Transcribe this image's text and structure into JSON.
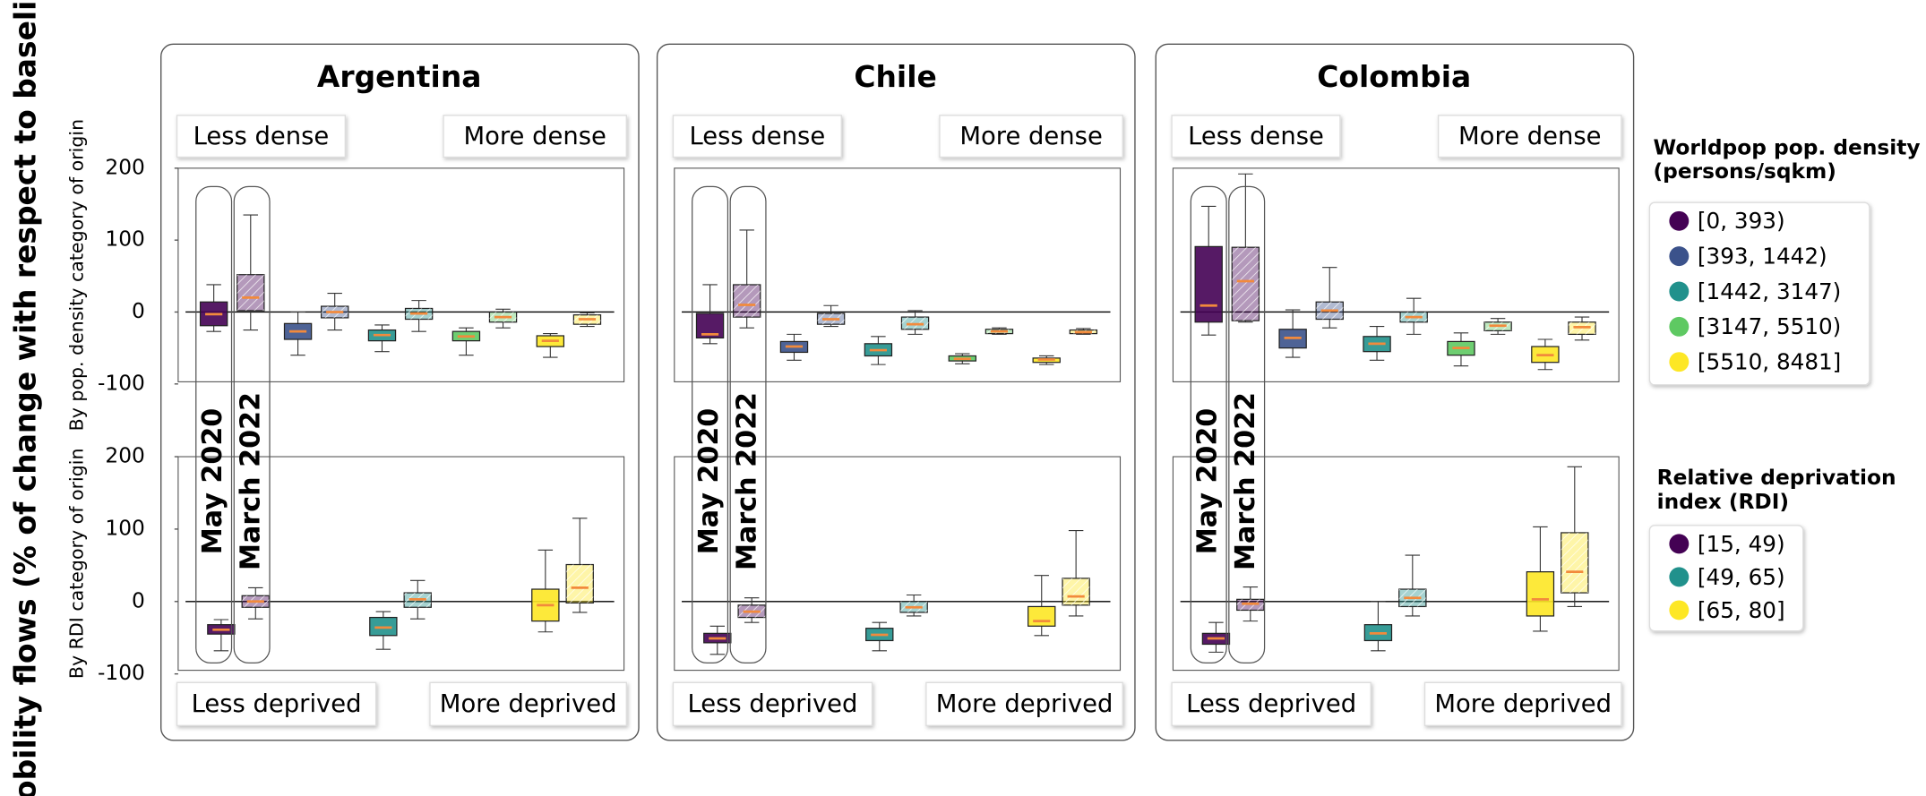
{
  "ylabel": "Mobility flows (% of change with respect to baseline)",
  "legends": [
    {
      "title": [
        "Worldpop pop. density",
        "(persons/sqkm)"
      ],
      "entries": [
        "[0, 393)",
        "[393, 1442)",
        "[1442, 3147)",
        "[3147, 5510)",
        "[5510, 8481]"
      ],
      "colors": [
        "#440154",
        "#3b528b",
        "#21918c",
        "#5ec962",
        "#fde725"
      ]
    },
    {
      "title": [
        "Relative deprivation",
        "index (RDI)"
      ],
      "entries": [
        "[15, 49)",
        "[49, 65)",
        "[65, 80]"
      ],
      "colors": [
        "#440154",
        "#21918c",
        "#fde725"
      ]
    }
  ],
  "chart_data": [
    {
      "type": "box",
      "title": "Argentina",
      "periods": [
        "May 2020",
        "March 2022"
      ],
      "panels": [
        {
          "ylabel": "By pop. density category of origin",
          "left_label": "Less dense",
          "right_label": "More dense",
          "ylim": [
            -97,
            200
          ],
          "yticks": [
            -100,
            0,
            100,
            200
          ],
          "boxes": [
            [
              [
                -27,
                -19,
                -3,
                14,
                38
              ],
              [
                -25,
                2,
                20,
                52,
                135
              ]
            ],
            [
              [
                -60,
                -38,
                -27,
                -16,
                0
              ],
              [
                -25,
                -8,
                0,
                8,
                26
              ]
            ],
            [
              [
                -55,
                -40,
                -32,
                -25,
                -18
              ],
              [
                -27,
                -10,
                -2,
                5,
                16
              ]
            ],
            [
              [
                -60,
                -40,
                -34,
                -27,
                -22
              ],
              [
                -22,
                -14,
                -7,
                0,
                4
              ]
            ],
            [
              [
                -63,
                -48,
                -40,
                -33,
                -30
              ],
              [
                -20,
                -17,
                -10,
                -4,
                -1
              ]
            ]
          ]
        },
        {
          "ylabel": "By RDI category of origin",
          "left_label": "Less deprived",
          "right_label": "More deprived",
          "ylim": [
            -95,
            200
          ],
          "yticks": [
            -100,
            0,
            100,
            200
          ],
          "boxes": [
            [
              [
                -68,
                -45,
                -39,
                -32,
                -25
              ],
              [
                -24,
                -8,
                0,
                8,
                19
              ]
            ],
            [
              [
                -66,
                -47,
                -36,
                -22,
                -14
              ],
              [
                -24,
                -8,
                3,
                12,
                29
              ]
            ],
            [
              [
                -42,
                -27,
                -5,
                17,
                71
              ],
              [
                -15,
                -2,
                19,
                51,
                115
              ]
            ]
          ]
        }
      ]
    },
    {
      "type": "box",
      "title": "Chile",
      "periods": [
        "May 2020",
        "March 2022"
      ],
      "panels": [
        {
          "left_label": "Less dense",
          "right_label": "More dense",
          "ylim": [
            -97,
            200
          ],
          "boxes": [
            [
              [
                -44,
                -36,
                -31,
                -2,
                38
              ],
              [
                -22,
                -7,
                10,
                38,
                114
              ]
            ],
            [
              [
                -67,
                -56,
                -48,
                -41,
                -31
              ],
              [
                -20,
                -17,
                -10,
                -2,
                9
              ]
            ],
            [
              [
                -73,
                -61,
                -53,
                -44,
                -34
              ],
              [
                -31,
                -24,
                -17,
                -7,
                2
              ]
            ],
            [
              [
                -72,
                -68,
                -65,
                -61,
                -58
              ],
              [
                -31,
                -30,
                -27,
                -24,
                -22
              ]
            ],
            [
              [
                -73,
                -70,
                -66,
                -64,
                -61
              ],
              [
                -31,
                -30,
                -28,
                -25,
                -23
              ]
            ]
          ]
        },
        {
          "left_label": "Less deprived",
          "right_label": "More deprived",
          "ylim": [
            -95,
            200
          ],
          "boxes": [
            [
              [
                -73,
                -57,
                -51,
                -44,
                -34
              ],
              [
                -29,
                -22,
                -14,
                -5,
                5
              ]
            ],
            [
              [
                -68,
                -54,
                -46,
                -37,
                -29
              ],
              [
                -20,
                -15,
                -8,
                0,
                9
              ]
            ],
            [
              [
                -47,
                -34,
                -27,
                -7,
                36
              ],
              [
                -20,
                -5,
                7,
                32,
                98
              ]
            ]
          ]
        }
      ]
    },
    {
      "type": "box",
      "title": "Colombia",
      "periods": [
        "May 2020",
        "March 2022"
      ],
      "panels": [
        {
          "left_label": "Less dense",
          "right_label": "More dense",
          "ylim": [
            -97,
            200
          ],
          "boxes": [
            [
              [
                -32,
                -14,
                9,
                91,
                147
              ],
              [
                -14,
                -12,
                43,
                90,
                192
              ]
            ],
            [
              [
                -63,
                -50,
                -36,
                -24,
                3
              ],
              [
                -22,
                -10,
                2,
                14,
                62
              ]
            ],
            [
              [
                -67,
                -55,
                -44,
                -34,
                -20
              ],
              [
                -31,
                -14,
                -7,
                0,
                19
              ]
            ],
            [
              [
                -75,
                -60,
                -50,
                -41,
                -29
              ],
              [
                -31,
                -26,
                -19,
                -14,
                -9
              ]
            ],
            [
              [
                -80,
                -70,
                -60,
                -48,
                -38
              ],
              [
                -39,
                -31,
                -21,
                -14,
                -7
              ]
            ]
          ]
        },
        {
          "left_label": "Less deprived",
          "right_label": "More deprived",
          "ylim": [
            -95,
            200
          ],
          "boxes": [
            [
              [
                -70,
                -59,
                -51,
                -44,
                -29
              ],
              [
                -27,
                -12,
                -3,
                3,
                20
              ]
            ],
            [
              [
                -68,
                -54,
                -44,
                -32,
                0
              ],
              [
                -20,
                -7,
                5,
                17,
                64
              ]
            ],
            [
              [
                -41,
                -20,
                3,
                41,
                103
              ],
              [
                -7,
                12,
                41,
                95,
                186
              ]
            ]
          ]
        }
      ]
    }
  ]
}
